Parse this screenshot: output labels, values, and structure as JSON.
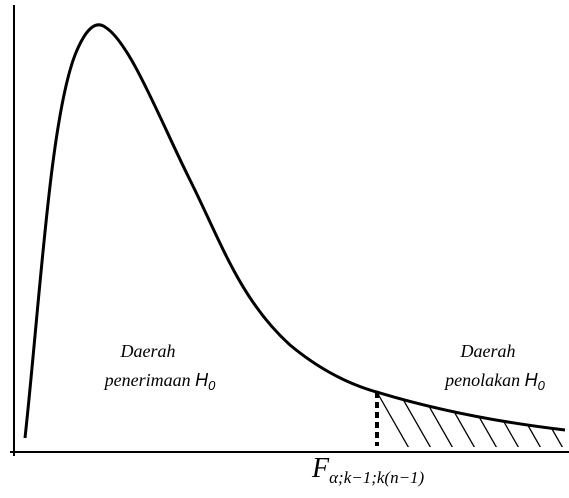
{
  "regions": [
    {
      "line1": "Daerah",
      "line2": "penerimaan",
      "symbol": "H",
      "subscript": "0"
    },
    {
      "line1": "Daerah",
      "line2": "penolakan",
      "symbol": "H",
      "subscript": "0"
    }
  ],
  "critical_value": {
    "symbol": "F",
    "subscript": "α;k−1;k(n−1)"
  }
}
